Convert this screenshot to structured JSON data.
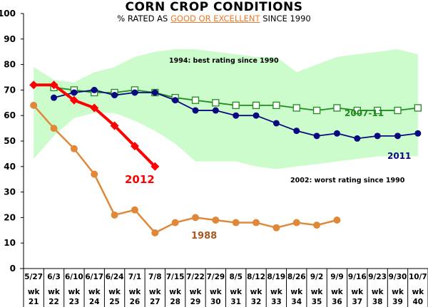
{
  "chart_data": {
    "type": "line",
    "title": "CORN CROP CONDITIONS",
    "subtitle": {
      "prefix": "% RATED AS ",
      "highlight": "GOOD OR EXCELLENT",
      "suffix": " SINCE 1990"
    },
    "xlabel": "",
    "ylabel": "",
    "ylim": [
      0,
      100
    ],
    "yticks": [
      0,
      10,
      20,
      30,
      40,
      50,
      60,
      70,
      80,
      90,
      100
    ],
    "grid": false,
    "categories": [
      {
        "date": "5/27",
        "week": "wk",
        "num": "21"
      },
      {
        "date": "6/3",
        "week": "wk",
        "num": "22"
      },
      {
        "date": "6/10",
        "week": "wk",
        "num": "23"
      },
      {
        "date": "6/17",
        "week": "wk",
        "num": "24"
      },
      {
        "date": "6/24",
        "week": "wk",
        "num": "25"
      },
      {
        "date": "7/1",
        "week": "wk",
        "num": "26"
      },
      {
        "date": "7/8",
        "week": "wk",
        "num": "27"
      },
      {
        "date": "7/15",
        "week": "wk",
        "num": "28"
      },
      {
        "date": "7/22",
        "week": "wk",
        "num": "29"
      },
      {
        "date": "7/29",
        "week": "wk",
        "num": "30"
      },
      {
        "date": "8/5",
        "week": "wk",
        "num": "31"
      },
      {
        "date": "8/12",
        "week": "wk",
        "num": "32"
      },
      {
        "date": "8/19",
        "week": "wk",
        "num": "33"
      },
      {
        "date": "8/26",
        "week": "wk",
        "num": "34"
      },
      {
        "date": "9/2",
        "week": "wk",
        "num": "35"
      },
      {
        "date": "9/9",
        "week": "wk",
        "num": "36"
      },
      {
        "date": "9/16",
        "week": "wk",
        "num": "37"
      },
      {
        "date": "9/23",
        "week": "wk",
        "num": "38"
      },
      {
        "date": "9/30",
        "week": "wk",
        "num": "39"
      },
      {
        "date": "10/7",
        "week": "wk",
        "num": "40"
      }
    ],
    "band": {
      "name": "range since 1990",
      "color": "#ccfccc",
      "upper": [
        79,
        74,
        73,
        77,
        79,
        83,
        85,
        86,
        86,
        85,
        84,
        83,
        83,
        77,
        80,
        83,
        84,
        85,
        86,
        84
      ],
      "lower": [
        43,
        52,
        59,
        61,
        61,
        58,
        54,
        49,
        42,
        42,
        42,
        40,
        39,
        40,
        41,
        42,
        43,
        44,
        44,
        44
      ],
      "upper_annotation": "1994: best rating since 1990",
      "lower_annotation": "2002: worst rating since 1990"
    },
    "series": [
      {
        "name": "2007-11",
        "color": "#1e8c1e",
        "marker": "open-square",
        "start_index": 1,
        "values": [
          71,
          70,
          69,
          69,
          70,
          69,
          67,
          66,
          65,
          64,
          64,
          64,
          63,
          62,
          63,
          62,
          62,
          62,
          63
        ]
      },
      {
        "name": "2011",
        "color": "#0a0a80",
        "marker": "circle",
        "start_index": 1,
        "values": [
          67,
          69,
          70,
          68,
          69,
          69,
          66,
          62,
          62,
          60,
          60,
          57,
          54,
          52,
          53,
          51,
          52,
          52,
          53
        ]
      },
      {
        "name": "1988",
        "color": "#e0883a",
        "label_color": "#a8581e",
        "marker": "circle",
        "start_index": 0,
        "values": [
          64,
          55,
          47,
          37,
          21,
          23,
          14,
          18,
          20,
          19,
          18,
          18,
          16,
          18,
          17,
          19
        ]
      },
      {
        "name": "2012",
        "color": "#ff0000",
        "marker": "diamond",
        "start_index": 0,
        "values": [
          72,
          72,
          66,
          63,
          56,
          48,
          40
        ]
      }
    ]
  }
}
